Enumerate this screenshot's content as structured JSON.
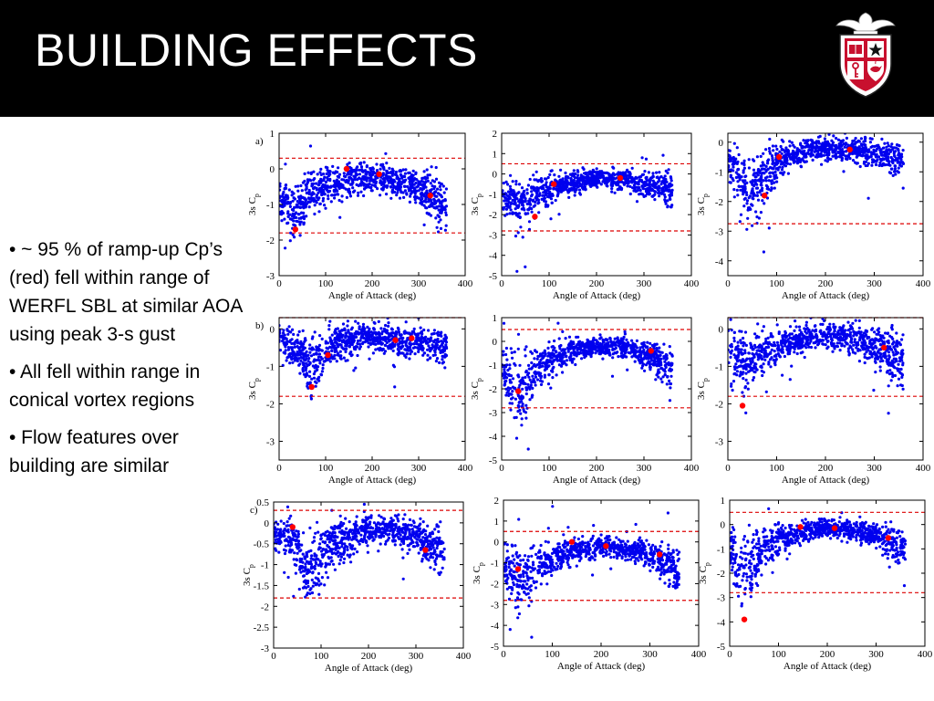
{
  "slide": {
    "title": "BUILDING EFFECTS",
    "bullets": [
      "• ~ 95 % of ramp-up Cp’s (red) fell within range of WERFL SBL at similar AOA using peak 3-s gust",
      "• All fell within range in conical vortex regions",
      "• Flow features over building are similar"
    ]
  },
  "colors": {
    "title_bar": "#000000",
    "title_text": "#ffffff",
    "scatter_blue": "#0000ee",
    "ramp_red": "#ff0000",
    "limit_line": "#dd0000",
    "logo_red": "#c8102e"
  },
  "logo": {
    "name": "university-shield-logo"
  },
  "chart_data": [
    {
      "type": "scatter",
      "panel_label": "a)",
      "xlabel": "Angle of Attack (deg)",
      "ylabel": "3s C",
      "ylabel_sub": "p",
      "xlim": [
        0,
        400
      ],
      "ylim": [
        -3,
        1
      ],
      "xticks": [
        0,
        100,
        200,
        300,
        400
      ],
      "yticks": [
        1,
        0,
        -1,
        -2,
        -3
      ],
      "ref_lines": [
        0.3,
        -1.8
      ],
      "series": [
        {
          "values_shape": [
            [
              0,
              -0.85,
              0.35
            ],
            [
              35,
              -1.25,
              0.55
            ],
            [
              60,
              -0.75,
              0.45
            ],
            [
              140,
              -0.3,
              0.35
            ],
            [
              200,
              -0.2,
              0.3
            ],
            [
              260,
              -0.35,
              0.3
            ],
            [
              300,
              -0.5,
              0.35
            ],
            [
              340,
              -0.9,
              0.5
            ],
            [
              360,
              -1.0,
              0.5
            ]
          ]
        }
      ],
      "ramp_up": [
        [
          35,
          -1.7
        ],
        [
          145,
          0.0
        ],
        [
          215,
          -0.15
        ],
        [
          325,
          -0.75
        ]
      ]
    },
    {
      "type": "scatter",
      "panel_label": "",
      "xlabel": "Angle of Attack (deg)",
      "ylabel": "3s C",
      "ylabel_sub": "p",
      "xlim": [
        0,
        400
      ],
      "ylim": [
        -5,
        2
      ],
      "xticks": [
        0,
        100,
        200,
        300,
        400
      ],
      "yticks": [
        2,
        1,
        0,
        -1,
        -2,
        -3,
        -4,
        -5
      ],
      "ref_lines": [
        0.5,
        -2.8
      ],
      "series": [
        {
          "values_shape": [
            [
              0,
              -1.0,
              0.7
            ],
            [
              40,
              -1.5,
              0.9
            ],
            [
              80,
              -0.9,
              0.6
            ],
            [
              150,
              -0.4,
              0.4
            ],
            [
              200,
              -0.2,
              0.35
            ],
            [
              260,
              -0.3,
              0.4
            ],
            [
              320,
              -0.6,
              0.5
            ],
            [
              360,
              -0.9,
              0.6
            ]
          ]
        }
      ],
      "ramp_up": [
        [
          70,
          -2.1
        ],
        [
          110,
          -0.5
        ],
        [
          250,
          -0.2
        ]
      ]
    },
    {
      "type": "scatter",
      "panel_label": "",
      "xlabel": "Angle of Attack (deg)",
      "ylabel": "3s C",
      "ylabel_sub": "p",
      "xlim": [
        0,
        400
      ],
      "ylim": [
        -4.5,
        0.3
      ],
      "xticks": [
        0,
        100,
        200,
        300,
        400
      ],
      "yticks": [
        0,
        -1,
        -2,
        -3,
        -4
      ],
      "ref_lines": [
        -2.75
      ],
      "series": [
        {
          "values_shape": [
            [
              0,
              -0.6,
              0.5
            ],
            [
              40,
              -1.8,
              1.0
            ],
            [
              70,
              -1.2,
              0.7
            ],
            [
              120,
              -0.5,
              0.35
            ],
            [
              180,
              -0.2,
              0.25
            ],
            [
              240,
              -0.25,
              0.3
            ],
            [
              300,
              -0.4,
              0.35
            ],
            [
              360,
              -0.6,
              0.4
            ]
          ]
        }
      ],
      "ramp_up": [
        [
          75,
          -1.8
        ],
        [
          105,
          -0.5
        ],
        [
          250,
          -0.25
        ]
      ]
    },
    {
      "type": "scatter",
      "panel_label": "b)",
      "xlabel": "Angle of Attack (deg)",
      "ylabel": "3s C",
      "ylabel_sub": "p",
      "xlim": [
        0,
        400
      ],
      "ylim": [
        -3.5,
        0.3
      ],
      "xticks": [
        0,
        100,
        200,
        300,
        400
      ],
      "yticks": [
        0,
        -1,
        -2,
        -3
      ],
      "ref_lines": [
        0.3,
        -1.8
      ],
      "series": [
        {
          "values_shape": [
            [
              0,
              -0.3,
              0.3
            ],
            [
              40,
              -0.6,
              0.4
            ],
            [
              70,
              -1.0,
              0.6
            ],
            [
              120,
              -0.4,
              0.35
            ],
            [
              180,
              -0.2,
              0.25
            ],
            [
              250,
              -0.3,
              0.3
            ],
            [
              300,
              -0.35,
              0.3
            ],
            [
              350,
              -0.5,
              0.35
            ]
          ]
        }
      ],
      "ramp_up": [
        [
          70,
          -1.55
        ],
        [
          105,
          -0.7
        ],
        [
          250,
          -0.3
        ],
        [
          285,
          -0.25
        ]
      ]
    },
    {
      "type": "scatter",
      "panel_label": "",
      "xlabel": "Angle of Attack (deg)",
      "ylabel": "3s C",
      "ylabel_sub": "p",
      "xlim": [
        0,
        400
      ],
      "ylim": [
        -5,
        1
      ],
      "xticks": [
        0,
        100,
        200,
        300,
        400
      ],
      "yticks": [
        1,
        0,
        -1,
        -2,
        -3,
        -4,
        -5
      ],
      "ref_lines": [
        0.5,
        -2.8
      ],
      "series": [
        {
          "values_shape": [
            [
              0,
              -1.2,
              0.7
            ],
            [
              35,
              -2.3,
              1.3
            ],
            [
              70,
              -1.2,
              0.7
            ],
            [
              130,
              -0.5,
              0.4
            ],
            [
              190,
              -0.2,
              0.3
            ],
            [
              260,
              -0.3,
              0.35
            ],
            [
              320,
              -0.7,
              0.5
            ],
            [
              360,
              -1.2,
              0.7
            ]
          ]
        }
      ],
      "ramp_up": [
        [
          35,
          -2.1
        ],
        [
          315,
          -0.4
        ]
      ]
    },
    {
      "type": "scatter",
      "panel_label": "",
      "xlabel": "Angle of Attack (deg)",
      "ylabel": "3s C",
      "ylabel_sub": "p",
      "xlim": [
        0,
        400
      ],
      "ylim": [
        -3.5,
        0.3
      ],
      "xticks": [
        0,
        100,
        200,
        300,
        400
      ],
      "yticks": [
        0,
        -1,
        -2,
        -3
      ],
      "ref_lines": [
        0.3,
        -1.8
      ],
      "series": [
        {
          "values_shape": [
            [
              0,
              -0.6,
              0.45
            ],
            [
              35,
              -1.0,
              0.6
            ],
            [
              70,
              -0.6,
              0.45
            ],
            [
              140,
              -0.3,
              0.3
            ],
            [
              200,
              -0.15,
              0.25
            ],
            [
              260,
              -0.25,
              0.3
            ],
            [
              320,
              -0.6,
              0.45
            ],
            [
              360,
              -0.9,
              0.5
            ]
          ]
        }
      ],
      "ramp_up": [
        [
          30,
          -2.05
        ],
        [
          320,
          -0.5
        ]
      ]
    },
    {
      "type": "scatter",
      "panel_label": "c)",
      "xlabel": "Angle of Attack (deg)",
      "ylabel": "3s C",
      "ylabel_sub": "p",
      "xlim": [
        0,
        400
      ],
      "ylim": [
        -3,
        0.5
      ],
      "xticks": [
        0,
        100,
        200,
        300,
        400
      ],
      "yticks": [
        0.5,
        0,
        -0.5,
        -1,
        -1.5,
        -2,
        -2.5,
        -3
      ],
      "ref_lines": [
        0.3,
        -1.8
      ],
      "series": [
        {
          "values_shape": [
            [
              0,
              -0.3,
              0.3
            ],
            [
              40,
              -0.4,
              0.35
            ],
            [
              70,
              -1.2,
              0.7
            ],
            [
              120,
              -0.6,
              0.45
            ],
            [
              190,
              -0.2,
              0.25
            ],
            [
              250,
              -0.15,
              0.25
            ],
            [
              300,
              -0.3,
              0.3
            ],
            [
              350,
              -0.6,
              0.4
            ]
          ]
        }
      ],
      "ramp_up": [
        [
          40,
          -0.1
        ],
        [
          320,
          -0.65
        ]
      ]
    },
    {
      "type": "scatter",
      "panel_label": "",
      "xlabel": "Angle of Attack (deg)",
      "ylabel": "3s C",
      "ylabel_sub": "p",
      "xlim": [
        0,
        400
      ],
      "ylim": [
        -5,
        2
      ],
      "xticks": [
        0,
        100,
        200,
        300,
        400
      ],
      "yticks": [
        2,
        1,
        0,
        -1,
        -2,
        -3,
        -4,
        -5
      ],
      "ref_lines": [
        0.5,
        -2.8
      ],
      "series": [
        {
          "values_shape": [
            [
              0,
              -1.3,
              0.8
            ],
            [
              35,
              -1.8,
              1.1
            ],
            [
              80,
              -1.0,
              0.6
            ],
            [
              150,
              -0.4,
              0.4
            ],
            [
              210,
              -0.2,
              0.35
            ],
            [
              270,
              -0.4,
              0.4
            ],
            [
              330,
              -0.9,
              0.6
            ],
            [
              360,
              -1.4,
              0.8
            ]
          ]
        }
      ],
      "ramp_up": [
        [
          30,
          -1.3
        ],
        [
          140,
          0.0
        ],
        [
          210,
          -0.2
        ],
        [
          320,
          -0.6
        ]
      ]
    },
    {
      "type": "scatter",
      "panel_label": "",
      "xlabel": "Angle of Attack (deg)",
      "ylabel": "3s C",
      "ylabel_sub": "p",
      "xlim": [
        0,
        400
      ],
      "ylim": [
        -5,
        1
      ],
      "xticks": [
        0,
        100,
        200,
        300,
        400
      ],
      "yticks": [
        1,
        0,
        -1,
        -2,
        -3,
        -4,
        -5
      ],
      "ref_lines": [
        0.5,
        -2.8
      ],
      "series": [
        {
          "values_shape": [
            [
              0,
              -1.0,
              0.6
            ],
            [
              30,
              -2.0,
              1.2
            ],
            [
              70,
              -1.0,
              0.6
            ],
            [
              140,
              -0.3,
              0.3
            ],
            [
              200,
              -0.15,
              0.25
            ],
            [
              260,
              -0.3,
              0.3
            ],
            [
              320,
              -0.6,
              0.45
            ],
            [
              360,
              -1.0,
              0.6
            ]
          ]
        }
      ],
      "ramp_up": [
        [
          30,
          -3.9
        ],
        [
          145,
          -0.1
        ],
        [
          215,
          -0.15
        ],
        [
          325,
          -0.55
        ]
      ]
    }
  ]
}
